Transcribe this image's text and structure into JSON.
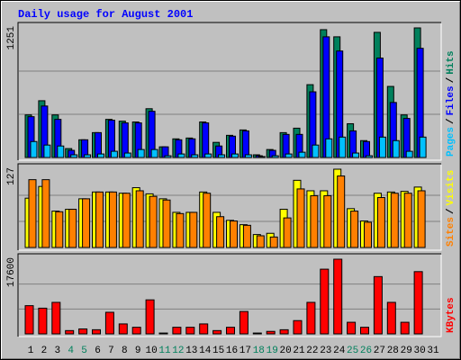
{
  "title": "Daily usage for August 2001",
  "chart_data": [
    {
      "type": "bar",
      "ylim": [
        0,
        1251
      ],
      "yticks": [
        1251
      ],
      "legend": "right",
      "legend_separator": "/",
      "series": [
        {
          "name": "Hits",
          "color": "#00805c",
          "values": [
            411,
            548,
            411,
            86,
            171,
            240,
            368,
            351,
            343,
            471,
            103,
            180,
            188,
            343,
            146,
            214,
            266,
            26,
            77,
            240,
            283,
            703,
            1234,
            1165,
            326,
            163,
            1208,
            686,
            411,
            1251,
            0
          ]
        },
        {
          "name": "Files",
          "color": "#0000ff",
          "values": [
            394,
            497,
            368,
            69,
            171,
            240,
            360,
            334,
            334,
            446,
            103,
            171,
            180,
            334,
            111,
            206,
            257,
            17,
            69,
            223,
            223,
            634,
            1165,
            1028,
            257,
            154,
            960,
            531,
            377,
            1054,
            0
          ]
        },
        {
          "name": "Pages",
          "color": "#00c0ff",
          "values": [
            154,
            120,
            111,
            26,
            26,
            34,
            60,
            43,
            77,
            77,
            17,
            34,
            26,
            34,
            26,
            34,
            26,
            9,
            17,
            34,
            51,
            120,
            180,
            197,
            43,
            17,
            197,
            163,
            60,
            197,
            0
          ]
        }
      ]
    },
    {
      "type": "bar",
      "ylim": [
        0,
        127
      ],
      "yticks": [
        127
      ],
      "legend": "right",
      "legend_separator": "/",
      "series": [
        {
          "name": "Visits",
          "color": "#ffff00",
          "values": [
            80,
            99,
            59,
            62,
            79,
            90,
            90,
            88,
            97,
            87,
            79,
            57,
            57,
            90,
            57,
            44,
            37,
            21,
            23,
            62,
            109,
            92,
            92,
            127,
            63,
            43,
            88,
            90,
            91,
            98,
            0
          ]
        },
        {
          "name": "Sites",
          "color": "#ff8000",
          "values": [
            110,
            110,
            58,
            62,
            79,
            90,
            90,
            88,
            92,
            83,
            77,
            55,
            57,
            88,
            50,
            43,
            36,
            19,
            17,
            48,
            95,
            84,
            84,
            116,
            59,
            41,
            81,
            88,
            88,
            92,
            0
          ]
        }
      ]
    },
    {
      "type": "bar",
      "ylim": [
        0,
        17600
      ],
      "yticks": [
        17600
      ],
      "legend": "right",
      "categories": [
        1,
        2,
        3,
        4,
        5,
        6,
        7,
        8,
        9,
        10,
        11,
        12,
        13,
        14,
        15,
        16,
        17,
        18,
        19,
        20,
        21,
        22,
        23,
        24,
        25,
        26,
        27,
        28,
        29,
        30,
        31
      ],
      "category_colors": [
        "#000000",
        "#000000",
        "#000000",
        "#00805c",
        "#00805c",
        "#000000",
        "#000000",
        "#000000",
        "#000000",
        "#000000",
        "#00805c",
        "#00805c",
        "#000000",
        "#000000",
        "#000000",
        "#000000",
        "#000000",
        "#00805c",
        "#00805c",
        "#000000",
        "#000000",
        "#000000",
        "#000000",
        "#000000",
        "#00805c",
        "#00805c",
        "#000000",
        "#000000",
        "#000000",
        "#000000",
        "#000000"
      ],
      "series": [
        {
          "name": "KBytes",
          "color": "#ff0000",
          "values": [
            6650,
            6060,
            7430,
            780,
            1170,
            980,
            5090,
            2350,
            1560,
            8020,
            200,
            1560,
            1560,
            2350,
            780,
            1560,
            5280,
            200,
            590,
            980,
            3130,
            7430,
            15250,
            17600,
            2740,
            1560,
            13500,
            7430,
            2740,
            14670,
            0
          ]
        }
      ]
    }
  ]
}
